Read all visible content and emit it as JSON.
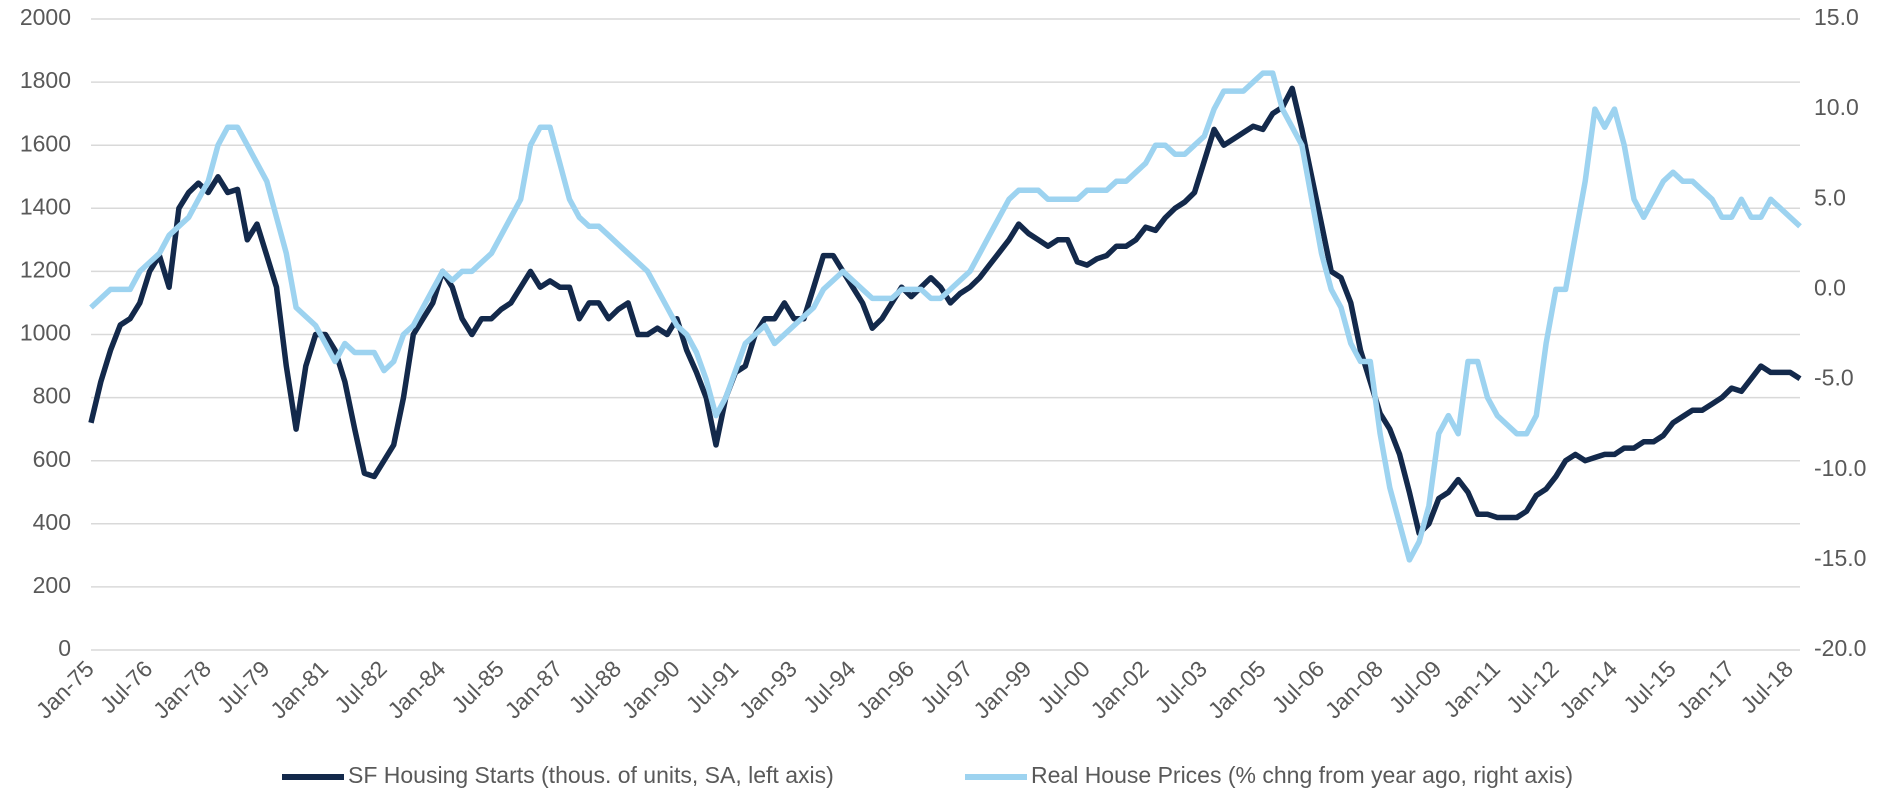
{
  "chart_data": {
    "type": "line",
    "categories": [
      "Jan-75",
      null,
      null,
      null,
      null,
      null,
      "Jul-76",
      null,
      null,
      null,
      null,
      null,
      "Jan-78",
      null,
      null,
      null,
      null,
      null,
      "Jul-79",
      null,
      null,
      null,
      null,
      null,
      "Jan-81",
      null,
      null,
      null,
      null,
      null,
      "Jul-82",
      null,
      null,
      null,
      null,
      null,
      "Jan-84",
      null,
      null,
      null,
      null,
      null,
      "Jul-85",
      null,
      null,
      null,
      null,
      null,
      "Jan-87",
      null,
      null,
      null,
      null,
      null,
      "Jul-88",
      null,
      null,
      null,
      null,
      null,
      "Jan-90",
      null,
      null,
      null,
      null,
      null,
      "Jul-91",
      null,
      null,
      null,
      null,
      null,
      "Jan-93",
      null,
      null,
      null,
      null,
      null,
      "Jul-94",
      null,
      null,
      null,
      null,
      null,
      "Jan-96",
      null,
      null,
      null,
      null,
      null,
      "Jul-97",
      null,
      null,
      null,
      null,
      null,
      "Jan-99",
      null,
      null,
      null,
      null,
      null,
      "Jul-00",
      null,
      null,
      null,
      null,
      null,
      "Jan-02",
      null,
      null,
      null,
      null,
      null,
      "Jul-03",
      null,
      null,
      null,
      null,
      null,
      "Jan-05",
      null,
      null,
      null,
      null,
      null,
      "Jul-06",
      null,
      null,
      null,
      null,
      null,
      "Jan-08",
      null,
      null,
      null,
      null,
      null,
      "Jul-09",
      null,
      null,
      null,
      null,
      null,
      "Jan-11",
      null,
      null,
      null,
      null,
      null,
      "Jul-12",
      null,
      null,
      null,
      null,
      null,
      "Jan-14",
      null,
      null,
      null,
      null,
      null,
      "Jul-15",
      null,
      null,
      null,
      null,
      null,
      "Jan-17",
      null,
      null,
      null,
      null,
      null,
      "Jul-18",
      null
    ],
    "series": [
      {
        "name": "SF Housing Starts (thous. of units, SA, left axis)",
        "color": "#13294b",
        "axis": "y",
        "values": [
          720,
          850,
          950,
          1030,
          1050,
          1100,
          1200,
          1250,
          1150,
          1400,
          1450,
          1480,
          1450,
          1500,
          1450,
          1460,
          1300,
          1350,
          1250,
          1150,
          900,
          700,
          900,
          1000,
          1000,
          950,
          850,
          700,
          560,
          550,
          600,
          650,
          800,
          1000,
          1050,
          1100,
          1200,
          1150,
          1050,
          1000,
          1050,
          1050,
          1080,
          1100,
          1150,
          1200,
          1150,
          1170,
          1150,
          1150,
          1050,
          1100,
          1100,
          1050,
          1080,
          1100,
          1000,
          1000,
          1020,
          1000,
          1050,
          950,
          880,
          800,
          650,
          800,
          880,
          900,
          1000,
          1050,
          1050,
          1100,
          1050,
          1050,
          1150,
          1250,
          1250,
          1200,
          1150,
          1100,
          1020,
          1050,
          1100,
          1150,
          1120,
          1150,
          1180,
          1150,
          1100,
          1130,
          1150,
          1180,
          1220,
          1260,
          1300,
          1350,
          1320,
          1300,
          1280,
          1300,
          1300,
          1230,
          1220,
          1240,
          1250,
          1280,
          1280,
          1300,
          1340,
          1330,
          1370,
          1400,
          1420,
          1450,
          1550,
          1650,
          1600,
          1620,
          1640,
          1660,
          1650,
          1700,
          1720,
          1780,
          1650,
          1500,
          1350,
          1200,
          1180,
          1100,
          950,
          850,
          750,
          700,
          620,
          500,
          370,
          400,
          480,
          500,
          540,
          500,
          430,
          430,
          420,
          420,
          420,
          440,
          490,
          510,
          550,
          600,
          620,
          600,
          610,
          620,
          620,
          640,
          640,
          660,
          660,
          680,
          720,
          740,
          760,
          760,
          780,
          800,
          830,
          820,
          860,
          900,
          880,
          880,
          880,
          860
        ]
      },
      {
        "name": "Real House Prices (% chng from year ago, right axis)",
        "color": "#9dd3f0",
        "axis": "y2",
        "values": [
          -1,
          -0.5,
          0,
          0,
          0,
          1,
          1.5,
          2,
          3,
          3.5,
          4,
          5,
          6,
          8,
          9,
          9,
          8,
          7,
          6,
          4,
          2,
          -1,
          -1.5,
          -2,
          -3,
          -4,
          -3,
          -3.5,
          -3.5,
          -3.5,
          -4.5,
          -4,
          -2.5,
          -2,
          -1,
          0,
          1,
          0.5,
          1,
          1,
          1.5,
          2,
          3,
          4,
          5,
          8,
          9,
          9,
          7,
          5,
          4,
          3.5,
          3.5,
          3,
          2.5,
          2,
          1.5,
          1,
          0,
          -1,
          -2,
          -2.5,
          -3.5,
          -5,
          -7,
          -6,
          -4.5,
          -3,
          -2.5,
          -2,
          -3,
          -2.5,
          -2,
          -1.5,
          -1,
          0,
          0.5,
          1,
          0.5,
          0,
          -0.5,
          -0.5,
          -0.5,
          0,
          0,
          0,
          -0.5,
          -0.5,
          0,
          0.5,
          1,
          2,
          3,
          4,
          5,
          5.5,
          5.5,
          5.5,
          5,
          5,
          5,
          5,
          5.5,
          5.5,
          5.5,
          6,
          6,
          6.5,
          7,
          8,
          8,
          7.5,
          7.5,
          8,
          8.5,
          10,
          11,
          11,
          11,
          11.5,
          12,
          12,
          10,
          9,
          8,
          5,
          2,
          0,
          -1,
          -3,
          -4,
          -4,
          -8,
          -11,
          -13,
          -15,
          -14,
          -12,
          -8,
          -7,
          -8,
          -4,
          -4,
          -6,
          -7,
          -7.5,
          -8,
          -8,
          -7,
          -3,
          0,
          0,
          3,
          6,
          10,
          9,
          10,
          8,
          5,
          4,
          5,
          6,
          6.5,
          6,
          6,
          5.5,
          5,
          4,
          4,
          5,
          4,
          4,
          5,
          4.5,
          4,
          3.5
        ]
      }
    ],
    "ylim": [
      0,
      2000
    ],
    "yticks": [
      0,
      200,
      400,
      600,
      800,
      1000,
      1200,
      1400,
      1600,
      1800,
      2000
    ],
    "y2lim": [
      -20,
      15
    ],
    "y2ticks": [
      {
        "value": -20,
        "label": "-20.0"
      },
      {
        "value": -15,
        "label": "-15.0"
      },
      {
        "value": -10,
        "label": "-10.0"
      },
      {
        "value": -5,
        "label": "-5.0"
      },
      {
        "value": 0,
        "label": "0.0"
      },
      {
        "value": 5,
        "label": "5.0"
      },
      {
        "value": 10,
        "label": "10.0"
      },
      {
        "value": 15,
        "label": "15.0"
      }
    ],
    "grid": true,
    "legend": "bottom"
  }
}
